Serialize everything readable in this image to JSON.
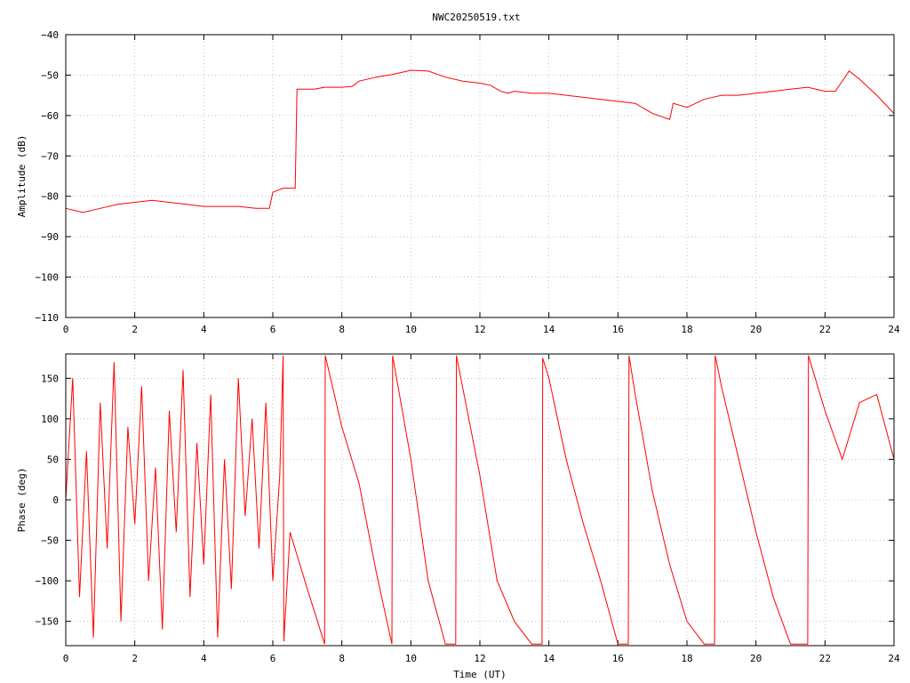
{
  "title": "NWC20250519.txt",
  "colors": {
    "series": "#ff0000",
    "frame": "#000000",
    "grid": "#a0a0a0"
  },
  "chart_data": [
    {
      "type": "line",
      "ylabel": "Amplitude (dB)",
      "xlabel": "",
      "xlim": [
        0,
        24
      ],
      "ylim": [
        -110,
        -40
      ],
      "x_ticks": [
        0,
        2,
        4,
        6,
        8,
        10,
        12,
        14,
        16,
        18,
        20,
        22,
        24
      ],
      "y_ticks": [
        -40,
        -50,
        -60,
        -70,
        -80,
        -90,
        -100,
        -110
      ],
      "y_tick_labels": [
        "−40",
        "−50",
        "−60",
        "−70",
        "−80",
        "−90",
        "−100",
        "−110"
      ],
      "grid": true,
      "series": [
        {
          "x": [
            0,
            0.5,
            1,
            1.5,
            2,
            2.5,
            3,
            3.5,
            4,
            4.5,
            5,
            5.5,
            5.9,
            6.0,
            6.3,
            6.65,
            6.7,
            7.0,
            7.2,
            7.5,
            8.0,
            8.3,
            8.5,
            9.0,
            9.5,
            10.0,
            10.5,
            11.0,
            11.5,
            12.0,
            12.3,
            12.6,
            12.8,
            13.0,
            13.5,
            14.0,
            14.5,
            15.0,
            15.5,
            16.0,
            16.5,
            17.0,
            17.5,
            17.6,
            18.0,
            18.5,
            19.0,
            19.5,
            20.0,
            20.5,
            21.0,
            21.5,
            22.0,
            22.3,
            22.7,
            23.0,
            23.5,
            24.0
          ],
          "y": [
            -83,
            -84,
            -83,
            -82,
            -81.5,
            -81,
            -81.5,
            -82,
            -82.5,
            -82.5,
            -82.5,
            -83,
            -83,
            -79,
            -78,
            -78,
            -53.5,
            -53.5,
            -53.5,
            -53,
            -53,
            -52.8,
            -51.5,
            -50.5,
            -49.8,
            -48.8,
            -49,
            -50.5,
            -51.5,
            -52,
            -52.5,
            -54,
            -54.5,
            -54,
            -54.5,
            -54.5,
            -55,
            -55.5,
            -56,
            -56.5,
            -57,
            -59.5,
            -61,
            -57,
            -58,
            -56,
            -55,
            -55,
            -54.5,
            -54,
            -53.5,
            -53,
            -54,
            -54,
            -49,
            -51,
            -55,
            -59.5
          ]
        }
      ]
    },
    {
      "type": "line",
      "ylabel": "Phase (deg)",
      "xlabel": "Time (UT)",
      "xlim": [
        0,
        24
      ],
      "ylim": [
        -180,
        180
      ],
      "x_ticks": [
        0,
        2,
        4,
        6,
        8,
        10,
        12,
        14,
        16,
        18,
        20,
        22,
        24
      ],
      "y_ticks": [
        150,
        100,
        50,
        0,
        -50,
        -100,
        -150
      ],
      "y_tick_labels": [
        "150",
        "100",
        "50",
        "0",
        "−50",
        "−100",
        "−150"
      ],
      "grid": true,
      "series": [
        {
          "x": [
            0,
            0.2,
            0.4,
            0.6,
            0.8,
            1.0,
            1.2,
            1.4,
            1.6,
            1.8,
            2.0,
            2.2,
            2.4,
            2.6,
            2.8,
            3.0,
            3.2,
            3.4,
            3.6,
            3.8,
            4.0,
            4.2,
            4.4,
            4.6,
            4.8,
            5.0,
            5.2,
            5.4,
            5.6,
            5.8,
            6.0,
            6.2,
            6.3,
            6.32,
            6.5,
            7.0,
            7.5,
            7.52,
            8.0,
            8.5,
            9.0,
            9.45,
            9.47,
            10.0,
            10.5,
            11.0,
            11.3,
            11.32,
            12.0,
            12.5,
            13.0,
            13.5,
            13.8,
            13.82,
            14.0,
            14.5,
            15.0,
            15.5,
            16.0,
            16.3,
            16.32,
            16.5,
            17.0,
            17.5,
            18.0,
            18.5,
            18.8,
            18.82,
            19.0,
            19.5,
            20.0,
            20.5,
            21.0,
            21.5,
            21.52,
            22.0,
            22.5,
            23.0,
            23.5,
            24.0
          ],
          "y": [
            0,
            150,
            -120,
            60,
            -170,
            120,
            -60,
            170,
            -150,
            90,
            -30,
            140,
            -100,
            40,
            -160,
            110,
            -40,
            160,
            -120,
            70,
            -80,
            130,
            -170,
            50,
            -110,
            150,
            -20,
            100,
            -60,
            120,
            -100,
            30,
            178,
            -175,
            -40,
            -110,
            -178,
            178,
            90,
            20,
            -90,
            -178,
            178,
            50,
            -100,
            -178,
            -178,
            178,
            30,
            -100,
            -150,
            -178,
            -178,
            175,
            150,
            50,
            -30,
            -100,
            -178,
            -178,
            178,
            130,
            10,
            -80,
            -150,
            -178,
            -178,
            178,
            140,
            50,
            -40,
            -120,
            -178,
            -178,
            178,
            110,
            50,
            120,
            130,
            50
          ]
        }
      ]
    }
  ]
}
